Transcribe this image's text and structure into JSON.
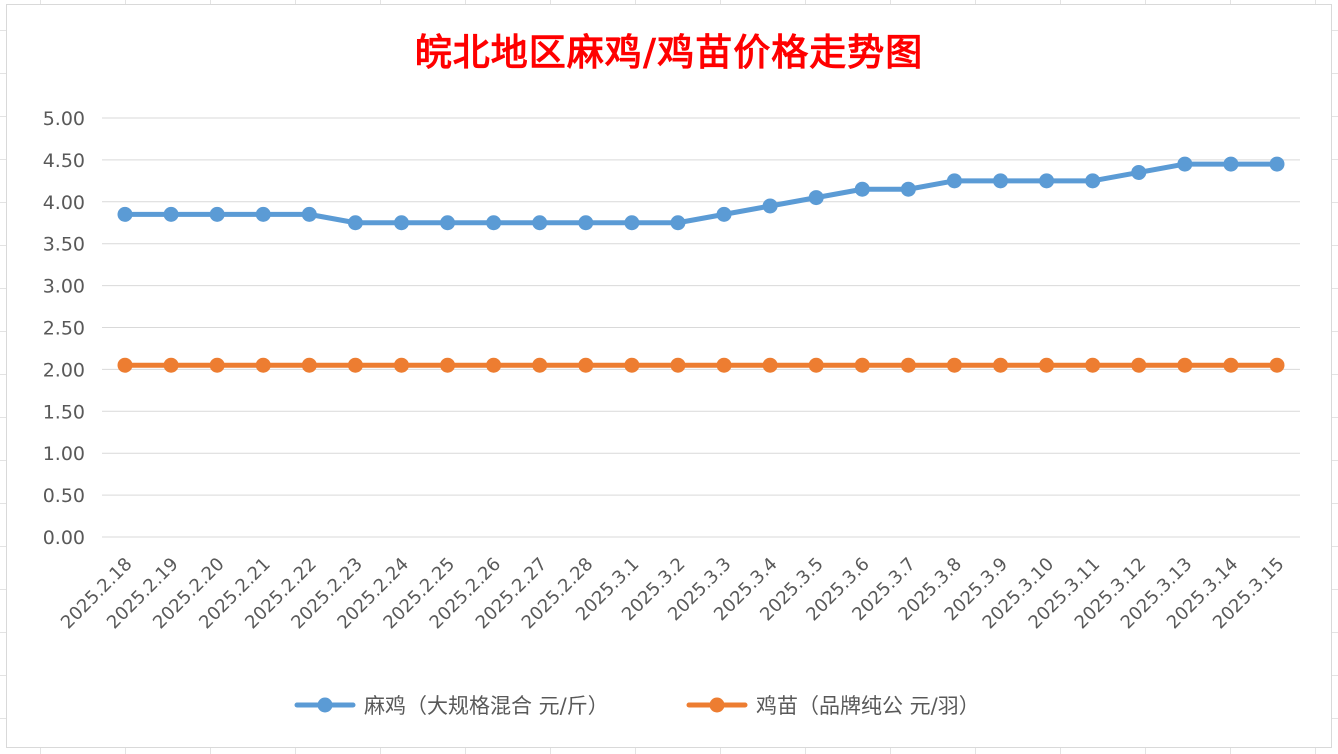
{
  "chart_data": {
    "type": "line",
    "title": "皖北地区麻鸡/鸡苗价格走势图",
    "title_color": "#ff0000",
    "xlabel": "",
    "ylabel": "",
    "ylim": [
      0,
      5
    ],
    "yticks": [
      "0.00",
      "0.50",
      "1.00",
      "1.50",
      "2.00",
      "2.50",
      "3.00",
      "3.50",
      "4.00",
      "4.50",
      "5.00"
    ],
    "y_step": 0.5,
    "grid": true,
    "legend_position": "bottom",
    "categories": [
      "2025.2.18",
      "2025.2.19",
      "2025.2.20",
      "2025.2.21",
      "2025.2.22",
      "2025.2.23",
      "2025.2.24",
      "2025.2.25",
      "2025.2.26",
      "2025.2.27",
      "2025.2.28",
      "2025.3.1",
      "2025.3.2",
      "2025.3.3",
      "2025.3.4",
      "2025.3.5",
      "2025.3.6",
      "2025.3.7",
      "2025.3.8",
      "2025.3.9",
      "2025.3.10",
      "2025.3.11",
      "2025.3.12",
      "2025.3.13",
      "2025.3.14",
      "2025.3.15"
    ],
    "series": [
      {
        "name": "麻鸡（大规格混合 元/斤）",
        "color": "#5b9bd5",
        "values": [
          3.85,
          3.85,
          3.85,
          3.85,
          3.85,
          3.75,
          3.75,
          3.75,
          3.75,
          3.75,
          3.75,
          3.75,
          3.75,
          3.85,
          3.95,
          4.05,
          4.15,
          4.15,
          4.25,
          4.25,
          4.25,
          4.25,
          4.35,
          4.45,
          4.45,
          4.45
        ]
      },
      {
        "name": "鸡苗（品牌纯公 元/羽）",
        "color": "#ed7d31",
        "values": [
          2.05,
          2.05,
          2.05,
          2.05,
          2.05,
          2.05,
          2.05,
          2.05,
          2.05,
          2.05,
          2.05,
          2.05,
          2.05,
          2.05,
          2.05,
          2.05,
          2.05,
          2.05,
          2.05,
          2.05,
          2.05,
          2.05,
          2.05,
          2.05,
          2.05,
          2.05
        ]
      }
    ]
  }
}
